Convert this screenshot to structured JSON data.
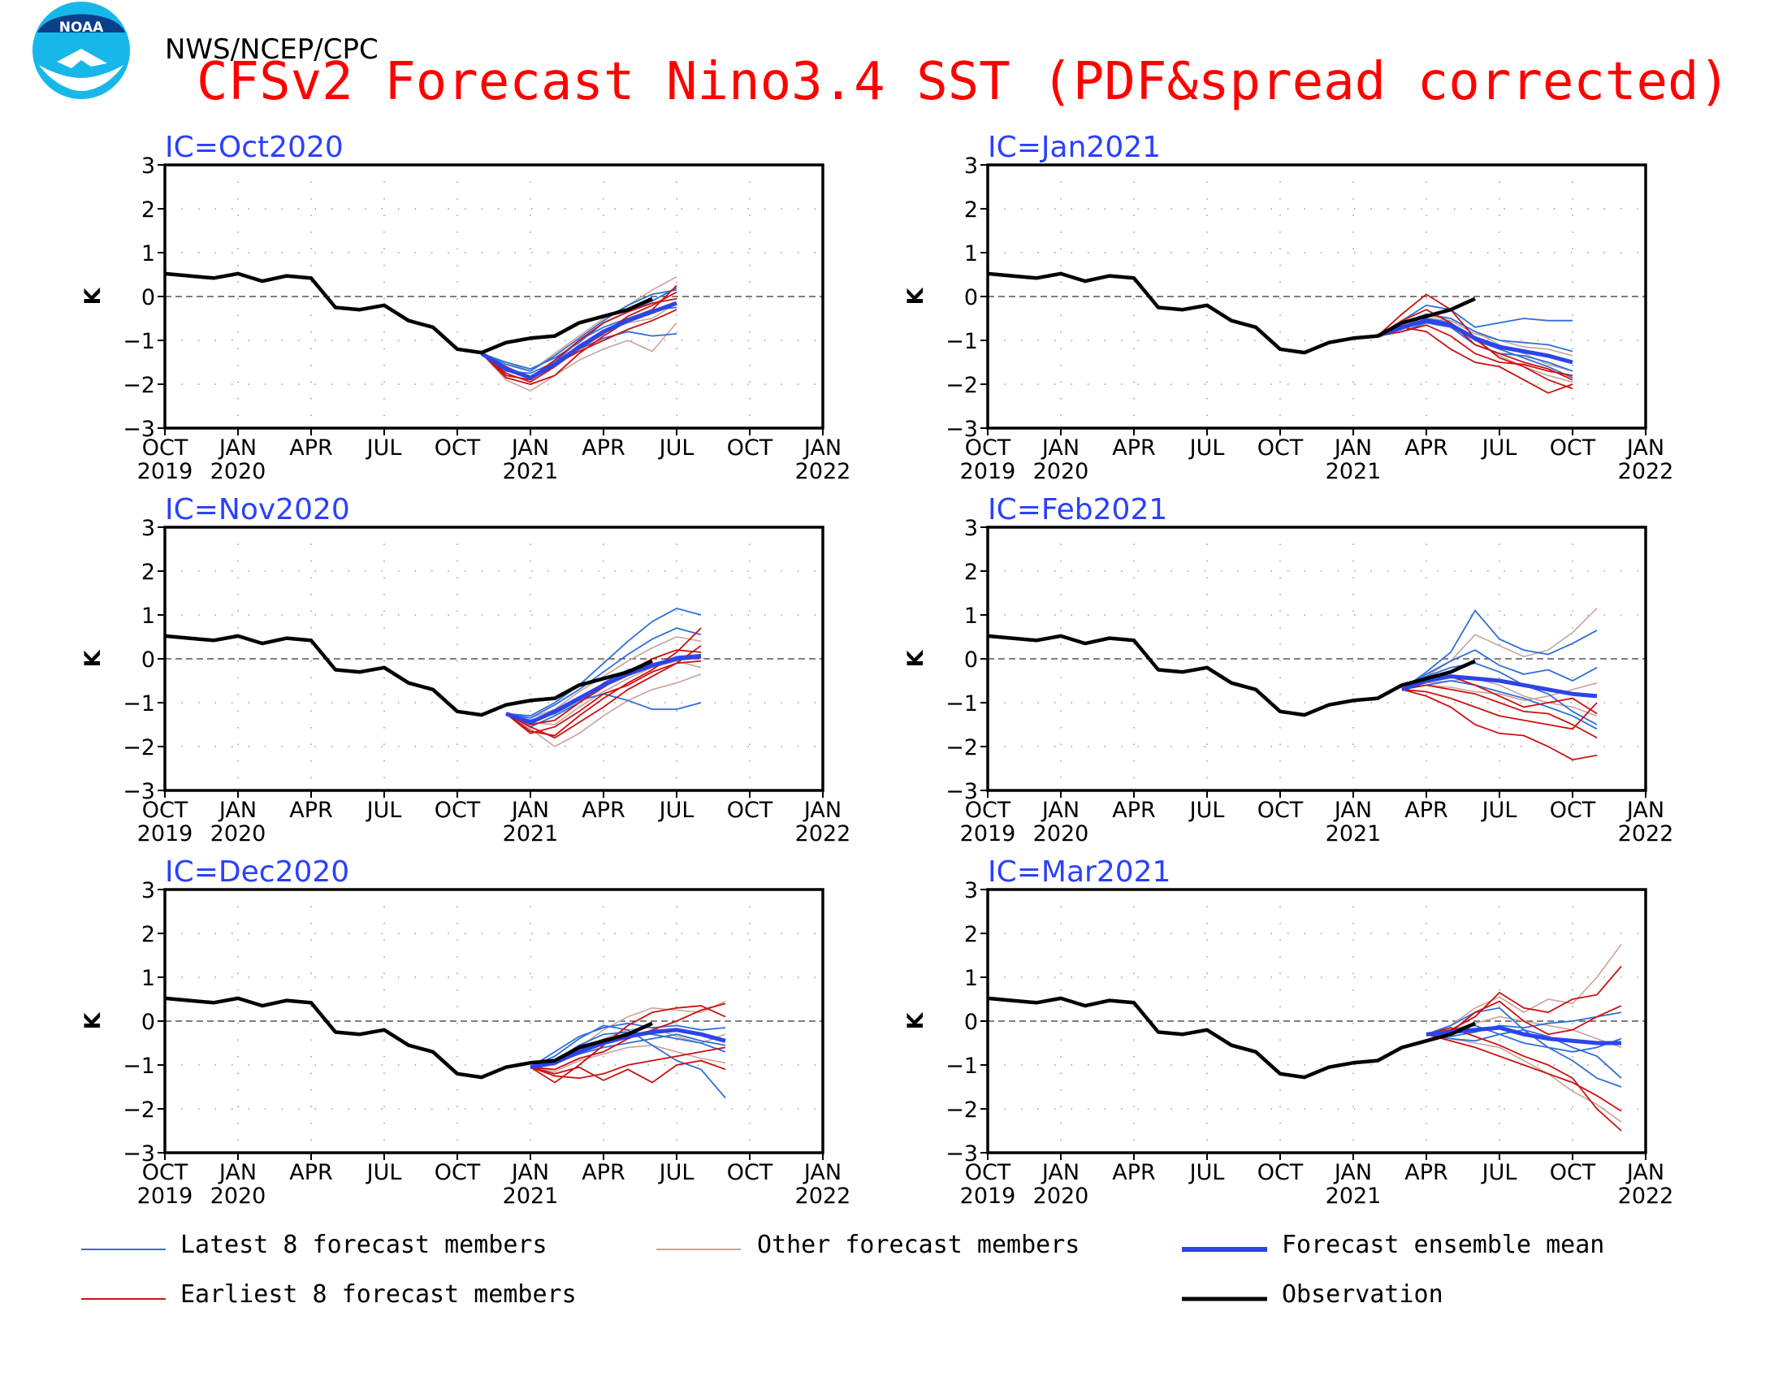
{
  "header": {
    "agency": "NWS/NCEP/CPC",
    "title": "CFSv2 Forecast Nino3.4 SST (PDF&spread corrected)",
    "logo_text": "NOAA"
  },
  "colors": {
    "title": "#ff0000",
    "ic_label": "#2a40ff",
    "latest": "#2f6fd8",
    "earliest": "#cc1111",
    "other": "#c8a39a",
    "mean": "#2c44e8",
    "observation": "#000000"
  },
  "axes": {
    "ylabel": "K",
    "yticks": [
      "3",
      "2",
      "1",
      "0",
      "−1",
      "−2",
      "−3"
    ],
    "xticks_top": [
      "OCT",
      "JAN",
      "APR",
      "JUL",
      "OCT",
      "JAN",
      "APR",
      "JUL",
      "OCT",
      "JAN"
    ],
    "xticks_bottom": [
      "2019",
      "2020",
      "",
      "",
      "",
      "2021",
      "",
      "",
      "",
      "2022"
    ]
  },
  "legend": [
    {
      "key": "latest",
      "label": "Latest 8 forecast members"
    },
    {
      "key": "other",
      "label": "Other forecast members"
    },
    {
      "key": "mean",
      "label": "Forecast ensemble mean"
    },
    {
      "key": "earliest",
      "label": "Earliest 8 forecast members"
    },
    {
      "key": "observation",
      "label": "Observation"
    }
  ],
  "chart_data": [
    {
      "type": "line",
      "ic_label": "IC=Oct2020",
      "x_axis": "monthly, Oct 2019 to Jan 2022",
      "ylim": [
        -3,
        3
      ],
      "zero_line": true,
      "observation": {
        "start": "2019-10",
        "values": [
          0.52,
          0.47,
          0.42,
          0.52,
          0.35,
          0.47,
          0.42,
          -0.25,
          -0.3,
          -0.2,
          -0.55,
          -0.7,
          -1.2,
          -1.28,
          -1.05,
          -0.95,
          -0.9,
          -0.6,
          -0.45,
          -0.3,
          -0.05
        ]
      },
      "forecast_start": "2020-11",
      "ensemble_mean": [
        -1.3,
        -1.65,
        -1.85,
        -1.55,
        -1.15,
        -0.8,
        -0.55,
        -0.35,
        -0.15
      ],
      "latest_members": [
        [
          -1.3,
          -1.55,
          -1.7,
          -1.35,
          -0.95,
          -0.55,
          -0.2,
          0.05,
          0.15
        ],
        [
          -1.3,
          -1.7,
          -1.75,
          -1.5,
          -1.0,
          -0.7,
          -0.5,
          -0.3,
          -0.25
        ],
        [
          -1.3,
          -1.6,
          -1.9,
          -1.55,
          -1.2,
          -0.95,
          -0.8,
          -0.9,
          -0.85
        ],
        [
          -1.3,
          -1.5,
          -1.65,
          -1.4,
          -1.05,
          -0.6,
          -0.35,
          -0.1,
          0.2
        ]
      ],
      "earliest_members": [
        [
          -1.3,
          -1.85,
          -2.0,
          -1.8,
          -1.3,
          -0.9,
          -0.55,
          -0.3,
          0.25
        ],
        [
          -1.3,
          -1.75,
          -1.95,
          -1.6,
          -1.2,
          -0.85,
          -0.45,
          -0.2,
          0.1
        ],
        [
          -1.3,
          -1.6,
          -1.85,
          -1.45,
          -1.0,
          -0.6,
          -0.35,
          -0.15,
          -0.05
        ],
        [
          -1.3,
          -1.8,
          -1.9,
          -1.55,
          -1.25,
          -1.0,
          -0.75,
          -0.55,
          -0.3
        ]
      ],
      "other_members": [
        [
          -1.3,
          -1.9,
          -2.15,
          -1.8,
          -1.45,
          -1.2,
          -1.0,
          -1.25,
          -0.6
        ],
        [
          -1.3,
          -1.5,
          -1.7,
          -1.3,
          -0.9,
          -0.5,
          -0.2,
          0.15,
          0.45
        ],
        [
          -1.3,
          -1.7,
          -1.85,
          -1.5,
          -1.1,
          -0.8,
          -0.6,
          -0.5,
          -0.15
        ]
      ]
    },
    {
      "type": "line",
      "ic_label": "IC=Jan2021",
      "x_axis": "monthly, Oct 2019 to Jan 2022",
      "ylim": [
        -3,
        3
      ],
      "zero_line": true,
      "observation": {
        "start": "2019-10",
        "values": [
          0.52,
          0.47,
          0.42,
          0.52,
          0.35,
          0.47,
          0.42,
          -0.25,
          -0.3,
          -0.2,
          -0.55,
          -0.7,
          -1.2,
          -1.28,
          -1.05,
          -0.95,
          -0.9,
          -0.6,
          -0.45,
          -0.3,
          -0.05
        ]
      },
      "forecast_start": "2021-02",
      "ensemble_mean": [
        -0.9,
        -0.7,
        -0.55,
        -0.65,
        -0.95,
        -1.15,
        -1.25,
        -1.35,
        -1.5
      ],
      "latest_members": [
        [
          -0.9,
          -0.55,
          -0.2,
          -0.3,
          -0.7,
          -0.6,
          -0.5,
          -0.55,
          -0.55
        ],
        [
          -0.9,
          -0.6,
          -0.4,
          -0.5,
          -0.8,
          -1.0,
          -1.05,
          -1.1,
          -1.25
        ],
        [
          -0.9,
          -0.75,
          -0.5,
          -0.6,
          -1.0,
          -1.2,
          -1.4,
          -1.6,
          -1.85
        ],
        [
          -0.9,
          -0.8,
          -0.6,
          -0.7,
          -1.1,
          -1.3,
          -1.35,
          -1.5,
          -1.7
        ]
      ],
      "earliest_members": [
        [
          -0.9,
          -0.4,
          0.05,
          -0.3,
          -0.95,
          -1.4,
          -1.6,
          -1.9,
          -2.1
        ],
        [
          -0.9,
          -0.7,
          -0.8,
          -1.2,
          -1.5,
          -1.6,
          -1.9,
          -2.2,
          -2.0
        ],
        [
          -0.9,
          -0.8,
          -0.65,
          -0.9,
          -1.3,
          -1.5,
          -1.55,
          -1.7,
          -1.8
        ],
        [
          -0.9,
          -0.55,
          -0.3,
          -0.6,
          -1.1,
          -1.3,
          -1.5,
          -1.65,
          -1.9
        ]
      ],
      "other_members": [
        [
          -0.9,
          -0.7,
          -0.45,
          -0.5,
          -0.8,
          -1.1,
          -1.3,
          -1.55,
          -1.7
        ],
        [
          -0.9,
          -0.65,
          -0.55,
          -0.7,
          -1.0,
          -1.35,
          -1.6,
          -1.8,
          -1.95
        ],
        [
          -0.9,
          -0.75,
          -0.5,
          -0.55,
          -0.85,
          -1.0,
          -1.15,
          -1.2,
          -1.35
        ]
      ]
    },
    {
      "type": "line",
      "ic_label": "IC=Nov2020",
      "x_axis": "monthly, Oct 2019 to Jan 2022",
      "ylim": [
        -3,
        3
      ],
      "zero_line": true,
      "observation": {
        "start": "2019-10",
        "values": [
          0.52,
          0.47,
          0.42,
          0.52,
          0.35,
          0.47,
          0.42,
          -0.25,
          -0.3,
          -0.2,
          -0.55,
          -0.7,
          -1.2,
          -1.28,
          -1.05,
          -0.95,
          -0.9,
          -0.6,
          -0.45,
          -0.3,
          -0.05
        ]
      },
      "forecast_start": "2020-12",
      "ensemble_mean": [
        -1.25,
        -1.45,
        -1.2,
        -0.9,
        -0.6,
        -0.35,
        -0.15,
        0.0,
        0.05
      ],
      "latest_members": [
        [
          -1.25,
          -1.3,
          -1.0,
          -0.6,
          -0.1,
          0.4,
          0.85,
          1.15,
          1.0
        ],
        [
          -1.25,
          -1.4,
          -1.25,
          -0.95,
          -0.8,
          -0.95,
          -1.15,
          -1.15,
          -1.0
        ],
        [
          -1.25,
          -1.35,
          -1.05,
          -0.7,
          -0.3,
          0.1,
          0.45,
          0.7,
          0.55
        ],
        [
          -1.25,
          -1.55,
          -1.3,
          -1.0,
          -0.55,
          -0.25,
          -0.15,
          0.05,
          0.1
        ]
      ],
      "earliest_members": [
        [
          -1.25,
          -1.65,
          -1.75,
          -1.3,
          -0.9,
          -0.55,
          -0.25,
          0.15,
          0.7
        ],
        [
          -1.25,
          -1.55,
          -1.8,
          -1.45,
          -1.1,
          -0.7,
          -0.4,
          -0.1,
          0.3
        ],
        [
          -1.25,
          -1.5,
          -1.4,
          -1.0,
          -0.65,
          -0.3,
          0.0,
          0.2,
          0.15
        ],
        [
          -1.25,
          -1.7,
          -1.55,
          -1.2,
          -0.8,
          -0.6,
          -0.3,
          -0.1,
          -0.05
        ]
      ],
      "other_members": [
        [
          -1.25,
          -1.6,
          -2.0,
          -1.7,
          -1.3,
          -0.95,
          -0.7,
          -0.55,
          -0.35
        ],
        [
          -1.25,
          -1.45,
          -1.5,
          -1.1,
          -0.75,
          -0.45,
          -0.2,
          -0.05,
          -0.2
        ],
        [
          -1.25,
          -1.35,
          -1.15,
          -0.75,
          -0.4,
          -0.05,
          0.25,
          0.5,
          0.4
        ]
      ]
    },
    {
      "type": "line",
      "ic_label": "IC=Feb2021",
      "x_axis": "monthly, Oct 2019 to Jan 2022",
      "ylim": [
        -3,
        3
      ],
      "zero_line": true,
      "observation": {
        "start": "2019-10",
        "values": [
          0.52,
          0.47,
          0.42,
          0.52,
          0.35,
          0.47,
          0.42,
          -0.25,
          -0.3,
          -0.2,
          -0.55,
          -0.7,
          -1.2,
          -1.28,
          -1.05,
          -0.95,
          -0.9,
          -0.6,
          -0.45,
          -0.3,
          -0.05
        ]
      },
      "forecast_start": "2021-03",
      "ensemble_mean": [
        -0.7,
        -0.5,
        -0.4,
        -0.45,
        -0.5,
        -0.6,
        -0.7,
        -0.8,
        -0.85
      ],
      "latest_members": [
        [
          -0.7,
          -0.3,
          0.15,
          1.1,
          0.45,
          0.2,
          0.1,
          0.35,
          0.65
        ],
        [
          -0.7,
          -0.4,
          -0.2,
          -0.1,
          -0.3,
          -0.6,
          -0.8,
          -1.2,
          -1.5
        ],
        [
          -0.7,
          -0.6,
          -0.5,
          -0.6,
          -0.75,
          -0.9,
          -1.1,
          -1.3,
          -1.6
        ],
        [
          -0.7,
          -0.35,
          -0.05,
          0.2,
          -0.15,
          -0.35,
          -0.25,
          -0.5,
          -0.2
        ]
      ],
      "earliest_members": [
        [
          -0.7,
          -0.85,
          -1.1,
          -1.5,
          -1.7,
          -1.75,
          -2.0,
          -2.3,
          -2.2
        ],
        [
          -0.7,
          -0.6,
          -0.7,
          -0.8,
          -1.0,
          -1.2,
          -1.25,
          -1.5,
          -1.8
        ],
        [
          -0.7,
          -0.5,
          -0.4,
          -0.6,
          -0.85,
          -1.1,
          -1.0,
          -0.9,
          -1.25
        ],
        [
          -0.7,
          -0.75,
          -0.9,
          -1.1,
          -1.3,
          -1.4,
          -1.5,
          -1.6,
          -1.0
        ]
      ],
      "other_members": [
        [
          -0.7,
          -0.4,
          -0.05,
          0.55,
          0.3,
          0.05,
          0.2,
          0.6,
          1.15
        ],
        [
          -0.7,
          -0.55,
          -0.5,
          -0.45,
          -0.6,
          -0.85,
          -1.0,
          -1.1,
          -1.3
        ],
        [
          -0.7,
          -0.6,
          -0.65,
          -0.75,
          -0.8,
          -0.95,
          -0.85,
          -0.7,
          -0.55
        ]
      ]
    },
    {
      "type": "line",
      "ic_label": "IC=Dec2020",
      "x_axis": "monthly, Oct 2019 to Jan 2022",
      "ylim": [
        -3,
        3
      ],
      "zero_line": true,
      "observation": {
        "start": "2019-10",
        "values": [
          0.52,
          0.47,
          0.42,
          0.52,
          0.35,
          0.47,
          0.42,
          -0.25,
          -0.3,
          -0.2,
          -0.55,
          -0.7,
          -1.2,
          -1.28,
          -1.05,
          -0.95,
          -0.9,
          -0.6,
          -0.45,
          -0.3,
          -0.05
        ]
      },
      "forecast_start": "2021-01",
      "ensemble_mean": [
        -1.05,
        -0.95,
        -0.7,
        -0.5,
        -0.35,
        -0.25,
        -0.2,
        -0.3,
        -0.45
      ],
      "latest_members": [
        [
          -1.05,
          -0.8,
          -0.4,
          -0.1,
          -0.2,
          -0.55,
          -0.9,
          -1.1,
          -1.75
        ],
        [
          -1.05,
          -0.9,
          -0.55,
          -0.3,
          -0.25,
          -0.3,
          -0.4,
          -0.5,
          -0.7
        ],
        [
          -1.05,
          -0.95,
          -0.75,
          -0.6,
          -0.5,
          -0.4,
          -0.3,
          -0.45,
          -0.55
        ],
        [
          -1.05,
          -0.7,
          -0.35,
          -0.15,
          -0.05,
          -0.15,
          -0.1,
          -0.2,
          -0.15
        ]
      ],
      "earliest_members": [
        [
          -1.05,
          -1.4,
          -1.0,
          -0.55,
          -0.1,
          0.2,
          0.3,
          0.35,
          0.1
        ],
        [
          -1.05,
          -1.25,
          -1.3,
          -1.2,
          -1.0,
          -0.9,
          -0.8,
          -0.7,
          -0.6
        ],
        [
          -1.05,
          -1.1,
          -0.85,
          -0.7,
          -0.4,
          -0.2,
          0.0,
          0.25,
          0.4
        ],
        [
          -1.05,
          -1.2,
          -1.05,
          -1.35,
          -1.1,
          -1.4,
          -1.0,
          -0.9,
          -1.1
        ]
      ],
      "other_members": [
        [
          -1.05,
          -1.0,
          -0.6,
          -0.2,
          0.1,
          0.3,
          0.25,
          0.2,
          0.45
        ],
        [
          -1.05,
          -1.15,
          -0.9,
          -0.75,
          -0.6,
          -0.55,
          -0.7,
          -0.85,
          -0.95
        ],
        [
          -1.05,
          -0.9,
          -0.65,
          -0.4,
          -0.2,
          -0.15,
          -0.35,
          -0.5,
          -0.3
        ]
      ]
    },
    {
      "type": "line",
      "ic_label": "IC=Mar2021",
      "x_axis": "monthly, Oct 2019 to Jan 2022",
      "ylim": [
        -3,
        3
      ],
      "zero_line": true,
      "observation": {
        "start": "2019-10",
        "values": [
          0.52,
          0.47,
          0.42,
          0.52,
          0.35,
          0.47,
          0.42,
          -0.25,
          -0.3,
          -0.2,
          -0.55,
          -0.7,
          -1.2,
          -1.28,
          -1.05,
          -0.95,
          -0.9,
          -0.6,
          -0.45,
          -0.3,
          -0.05
        ]
      },
      "forecast_start": "2021-04",
      "ensemble_mean": [
        -0.3,
        -0.25,
        -0.2,
        -0.15,
        -0.3,
        -0.4,
        -0.45,
        -0.5,
        -0.5
      ],
      "latest_members": [
        [
          -0.3,
          -0.1,
          0.2,
          0.3,
          -0.2,
          -0.6,
          -0.9,
          -1.3,
          -1.5
        ],
        [
          -0.3,
          -0.35,
          -0.25,
          -0.1,
          -0.15,
          -0.05,
          0.0,
          0.1,
          0.2
        ],
        [
          -0.3,
          -0.2,
          -0.1,
          -0.3,
          -0.5,
          -0.6,
          -0.7,
          -0.6,
          -0.4
        ],
        [
          -0.3,
          -0.4,
          -0.45,
          -0.3,
          -0.2,
          -0.35,
          -0.6,
          -0.8,
          -1.3
        ]
      ],
      "earliest_members": [
        [
          -0.3,
          -0.2,
          0.1,
          0.65,
          0.3,
          0.2,
          0.5,
          0.6,
          1.25
        ],
        [
          -0.3,
          -0.45,
          -0.6,
          -0.8,
          -1.0,
          -1.2,
          -1.4,
          -1.7,
          -2.05
        ],
        [
          -0.3,
          -0.15,
          -0.35,
          -0.55,
          -0.8,
          -1.0,
          -1.3,
          -2.0,
          -2.5
        ],
        [
          -0.3,
          -0.25,
          0.2,
          0.45,
          0.0,
          -0.3,
          -0.2,
          0.1,
          0.35
        ]
      ],
      "other_members": [
        [
          -0.3,
          -0.1,
          0.3,
          0.55,
          0.2,
          0.5,
          0.4,
          1.0,
          1.75
        ],
        [
          -0.3,
          -0.4,
          -0.5,
          -0.6,
          -0.9,
          -1.2,
          -1.6,
          -1.9,
          -2.3
        ],
        [
          -0.3,
          -0.2,
          -0.05,
          0.1,
          0.0,
          -0.1,
          -0.2,
          -0.4,
          -0.6
        ]
      ]
    }
  ]
}
